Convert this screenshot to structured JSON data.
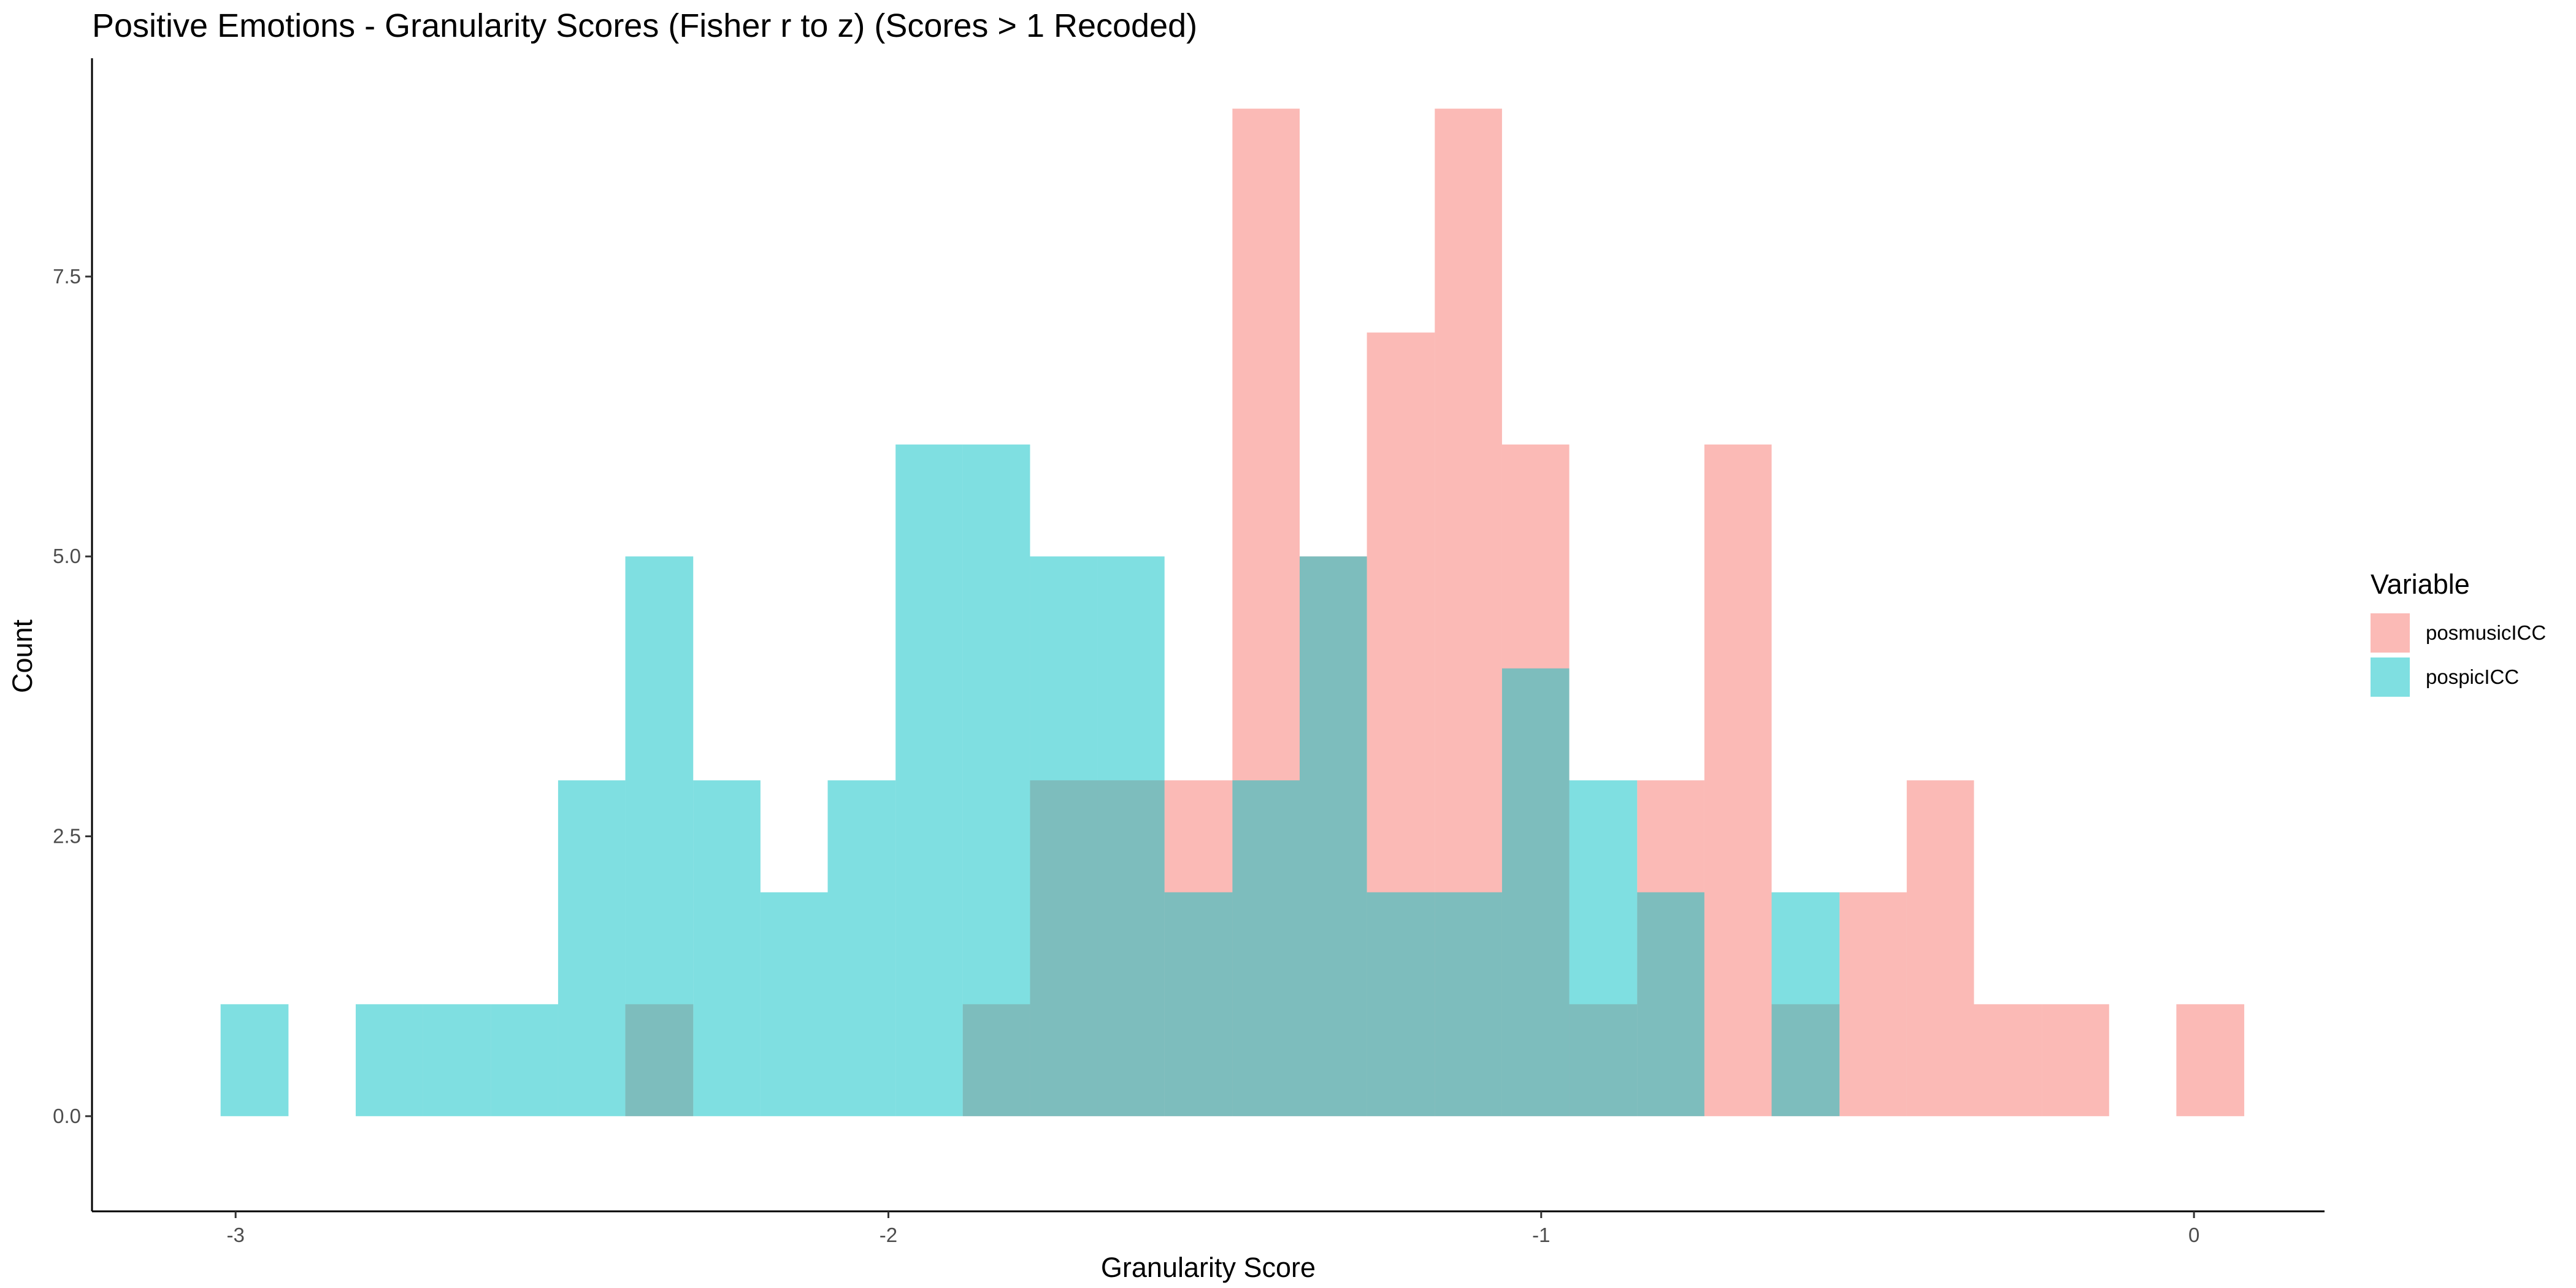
{
  "chart_data": {
    "type": "histogram",
    "title": "Positive Emotions - Granularity Scores (Fisher r to z) (Scores > 1 Recoded)",
    "xlabel": "Granularity Score",
    "ylabel": "Count",
    "xlim": [
      -3.22,
      0.2
    ],
    "ylim": [
      -0.85,
      9.45
    ],
    "x_ticks": [
      -3,
      -2,
      -1,
      0
    ],
    "x_tick_labels": [
      "-3",
      "-2",
      "-1",
      "0"
    ],
    "y_ticks": [
      0,
      2.5,
      5,
      7.5
    ],
    "y_tick_labels": [
      "0.0",
      "2.5",
      "5.0",
      "7.5"
    ],
    "grid": false,
    "legend": {
      "title": "Variable",
      "placement": "right"
    },
    "series": [
      {
        "name": "posmusicICC",
        "color": "#F8766D",
        "opacity": 0.5,
        "bins": [
          {
            "x0": -2.403,
            "x1": -2.299,
            "count": 1
          },
          {
            "x0": -1.886,
            "x1": -1.783,
            "count": 1
          },
          {
            "x0": -1.783,
            "x1": -1.68,
            "count": 3
          },
          {
            "x0": -1.68,
            "x1": -1.577,
            "count": 3
          },
          {
            "x0": -1.577,
            "x1": -1.473,
            "count": 3
          },
          {
            "x0": -1.473,
            "x1": -1.37,
            "count": 9
          },
          {
            "x0": -1.37,
            "x1": -1.267,
            "count": 5
          },
          {
            "x0": -1.267,
            "x1": -1.163,
            "count": 7
          },
          {
            "x0": -1.163,
            "x1": -1.06,
            "count": 9
          },
          {
            "x0": -1.06,
            "x1": -0.957,
            "count": 6
          },
          {
            "x0": -0.957,
            "x1": -0.853,
            "count": 1
          },
          {
            "x0": -0.853,
            "x1": -0.75,
            "count": 3
          },
          {
            "x0": -0.75,
            "x1": -0.647,
            "count": 6
          },
          {
            "x0": -0.647,
            "x1": -0.543,
            "count": 1
          },
          {
            "x0": -0.543,
            "x1": -0.44,
            "count": 2
          },
          {
            "x0": -0.44,
            "x1": -0.337,
            "count": 3
          },
          {
            "x0": -0.337,
            "x1": -0.233,
            "count": 1
          },
          {
            "x0": -0.233,
            "x1": -0.13,
            "count": 1
          },
          {
            "x0": -0.027,
            "x1": 0.077,
            "count": 1
          }
        ]
      },
      {
        "name": "pospicICC",
        "color": "#00BFC4",
        "opacity": 0.5,
        "bins": [
          {
            "x0": -3.023,
            "x1": -2.919,
            "count": 1
          },
          {
            "x0": -2.816,
            "x1": -2.713,
            "count": 1
          },
          {
            "x0": -2.713,
            "x1": -2.609,
            "count": 1
          },
          {
            "x0": -2.609,
            "x1": -2.506,
            "count": 1
          },
          {
            "x0": -2.506,
            "x1": -2.403,
            "count": 3
          },
          {
            "x0": -2.403,
            "x1": -2.299,
            "count": 5
          },
          {
            "x0": -2.299,
            "x1": -2.196,
            "count": 3
          },
          {
            "x0": -2.196,
            "x1": -2.093,
            "count": 2
          },
          {
            "x0": -2.093,
            "x1": -1.989,
            "count": 3
          },
          {
            "x0": -1.989,
            "x1": -1.886,
            "count": 6
          },
          {
            "x0": -1.886,
            "x1": -1.783,
            "count": 6
          },
          {
            "x0": -1.783,
            "x1": -1.68,
            "count": 5
          },
          {
            "x0": -1.68,
            "x1": -1.577,
            "count": 5
          },
          {
            "x0": -1.577,
            "x1": -1.473,
            "count": 2
          },
          {
            "x0": -1.473,
            "x1": -1.37,
            "count": 3
          },
          {
            "x0": -1.37,
            "x1": -1.267,
            "count": 5
          },
          {
            "x0": -1.267,
            "x1": -1.163,
            "count": 2
          },
          {
            "x0": -1.163,
            "x1": -1.06,
            "count": 2
          },
          {
            "x0": -1.06,
            "x1": -0.957,
            "count": 4
          },
          {
            "x0": -0.957,
            "x1": -0.853,
            "count": 3
          },
          {
            "x0": -0.853,
            "x1": -0.75,
            "count": 2
          },
          {
            "x0": -0.647,
            "x1": -0.543,
            "count": 2
          }
        ]
      }
    ]
  }
}
